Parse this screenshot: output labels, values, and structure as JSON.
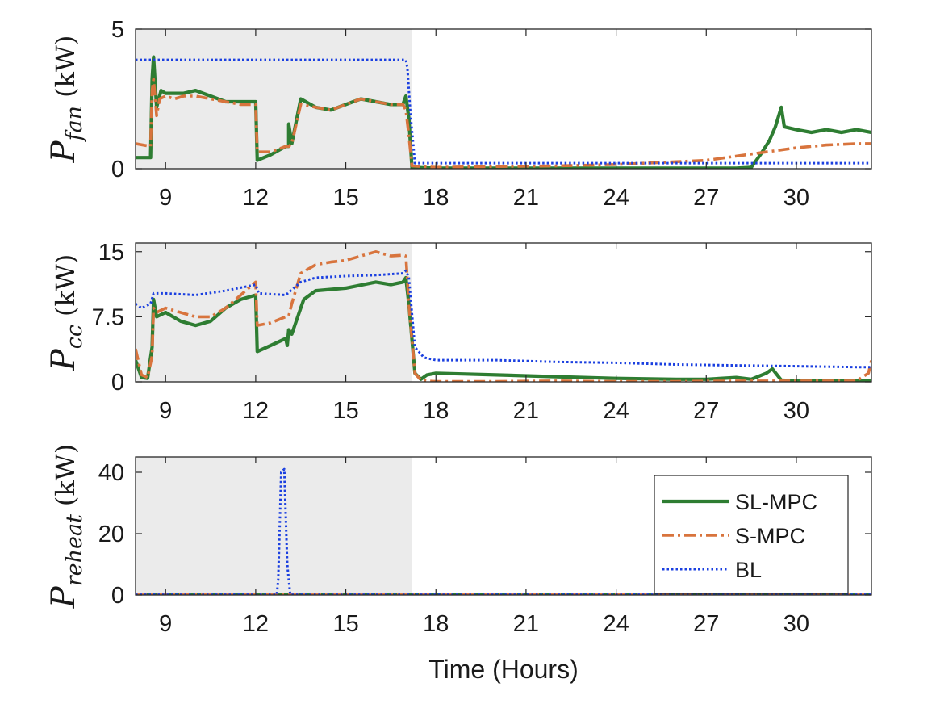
{
  "chart_data": {
    "type": "line",
    "xlabel": "Time (Hours)",
    "xlim": [
      8,
      32.5
    ],
    "x_ticks": [
      9,
      12,
      15,
      18,
      21,
      24,
      27,
      30
    ],
    "shaded_region_x": [
      8,
      17.2
    ],
    "legend": {
      "placement": "right of bottom panel",
      "entries": [
        {
          "name": "SL-MPC",
          "style": "solid",
          "color": "#2e7d32"
        },
        {
          "name": "S-MPC",
          "style": "dash-dot",
          "color": "#d8743d"
        },
        {
          "name": "BL",
          "style": "dotted",
          "color": "#1a3fe0"
        }
      ]
    },
    "colors": {
      "SL-MPC": "#2e7d32",
      "S-MPC": "#d8743d",
      "BL": "#1a3fe0",
      "shade": "#ebebeb"
    },
    "panels": [
      {
        "ylabel_main": "P",
        "ylabel_sub": "fan",
        "ylabel_unit": "(kW)",
        "ylim": [
          0,
          5
        ],
        "y_ticks": [
          {
            "value": 0,
            "label": "0"
          },
          {
            "value": 5,
            "label": "5"
          }
        ],
        "series": [
          {
            "name": "SL-MPC",
            "points": [
              [
                8,
                0.4
              ],
              [
                8.5,
                0.4
              ],
              [
                8.55,
                3.2
              ],
              [
                8.6,
                4.0
              ],
              [
                8.7,
                2.2
              ],
              [
                8.85,
                2.8
              ],
              [
                9,
                2.7
              ],
              [
                9.3,
                2.7
              ],
              [
                9.6,
                2.7
              ],
              [
                10,
                2.8
              ],
              [
                10.5,
                2.6
              ],
              [
                11,
                2.4
              ],
              [
                11.5,
                2.4
              ],
              [
                12,
                2.4
              ],
              [
                12.05,
                0.3
              ],
              [
                12.5,
                0.5
              ],
              [
                13,
                0.8
              ],
              [
                13.1,
                0.8
              ],
              [
                13.1,
                1.6
              ],
              [
                13.2,
                0.9
              ],
              [
                13.5,
                2.5
              ],
              [
                14,
                2.2
              ],
              [
                14.5,
                2.1
              ],
              [
                15,
                2.3
              ],
              [
                15.5,
                2.5
              ],
              [
                16,
                2.4
              ],
              [
                16.5,
                2.3
              ],
              [
                16.9,
                2.3
              ],
              [
                17,
                2.6
              ],
              [
                17.1,
                1.8
              ],
              [
                17.2,
                0.05
              ],
              [
                18,
                0.02
              ],
              [
                20,
                0.02
              ],
              [
                22,
                0.02
              ],
              [
                24,
                0.02
              ],
              [
                26,
                0.02
              ],
              [
                28,
                0.02
              ],
              [
                28.5,
                0.05
              ],
              [
                28.8,
                0.5
              ],
              [
                29.1,
                1.0
              ],
              [
                29.3,
                1.5
              ],
              [
                29.5,
                2.2
              ],
              [
                29.6,
                1.5
              ],
              [
                30,
                1.4
              ],
              [
                30.5,
                1.3
              ],
              [
                31,
                1.4
              ],
              [
                31.5,
                1.3
              ],
              [
                32,
                1.4
              ],
              [
                32.5,
                1.3
              ]
            ]
          },
          {
            "name": "S-MPC",
            "points": [
              [
                8,
                0.9
              ],
              [
                8.5,
                0.8
              ],
              [
                8.55,
                2.8
              ],
              [
                8.6,
                3.2
              ],
              [
                8.7,
                1.9
              ],
              [
                8.8,
                2.5
              ],
              [
                9,
                2.6
              ],
              [
                9.3,
                2.5
              ],
              [
                9.6,
                2.6
              ],
              [
                10,
                2.6
              ],
              [
                10.5,
                2.5
              ],
              [
                11,
                2.4
              ],
              [
                11.5,
                2.3
              ],
              [
                12,
                2.3
              ],
              [
                12.05,
                0.6
              ],
              [
                12.5,
                0.6
              ],
              [
                13,
                0.8
              ],
              [
                13.1,
                0.8
              ],
              [
                13.2,
                0.9
              ],
              [
                13.5,
                2.3
              ],
              [
                14,
                2.2
              ],
              [
                14.5,
                2.1
              ],
              [
                15,
                2.3
              ],
              [
                15.5,
                2.5
              ],
              [
                16,
                2.4
              ],
              [
                16.5,
                2.3
              ],
              [
                16.9,
                2.3
              ],
              [
                17,
                2.1
              ],
              [
                17.1,
                1.2
              ],
              [
                17.2,
                0.1
              ],
              [
                18,
                0.05
              ],
              [
                20,
                0.08
              ],
              [
                22,
                0.1
              ],
              [
                24,
                0.15
              ],
              [
                26,
                0.25
              ],
              [
                27,
                0.3
              ],
              [
                28,
                0.45
              ],
              [
                29,
                0.6
              ],
              [
                30,
                0.75
              ],
              [
                31,
                0.85
              ],
              [
                32,
                0.9
              ],
              [
                32.5,
                0.9
              ]
            ]
          },
          {
            "name": "BL",
            "points": [
              [
                8,
                3.9
              ],
              [
                17,
                3.9
              ],
              [
                17.05,
                3.6
              ],
              [
                17.15,
                2.0
              ],
              [
                17.3,
                0.2
              ],
              [
                20,
                0.2
              ],
              [
                25,
                0.2
              ],
              [
                30,
                0.2
              ],
              [
                32.5,
                0.2
              ]
            ]
          }
        ]
      },
      {
        "ylabel_main": "P",
        "ylabel_sub": "cc",
        "ylabel_unit": "(kW)",
        "ylim": [
          0,
          16
        ],
        "y_ticks": [
          {
            "value": 0,
            "label": "0"
          },
          {
            "value": 7.5,
            "label": "7.5"
          },
          {
            "value": 15,
            "label": "15"
          }
        ],
        "series": [
          {
            "name": "SL-MPC",
            "points": [
              [
                8,
                2.5
              ],
              [
                8.2,
                0.5
              ],
              [
                8.4,
                0.4
              ],
              [
                8.55,
                4.0
              ],
              [
                8.6,
                9.5
              ],
              [
                8.7,
                7.5
              ],
              [
                9,
                8.0
              ],
              [
                9.5,
                7.0
              ],
              [
                10,
                6.5
              ],
              [
                10.5,
                7.0
              ],
              [
                11,
                8.5
              ],
              [
                11.5,
                9.5
              ],
              [
                12,
                10.0
              ],
              [
                12.05,
                3.5
              ],
              [
                12.5,
                4.2
              ],
              [
                13,
                5.0
              ],
              [
                13.05,
                4.2
              ],
              [
                13.1,
                6.0
              ],
              [
                13.2,
                5.5
              ],
              [
                13.5,
                8.5
              ],
              [
                13.6,
                9.5
              ],
              [
                14,
                10.5
              ],
              [
                15,
                10.8
              ],
              [
                16,
                11.5
              ],
              [
                16.5,
                11.2
              ],
              [
                16.9,
                11.5
              ],
              [
                17,
                12.0
              ],
              [
                17.1,
                9.0
              ],
              [
                17.3,
                1.0
              ],
              [
                17.5,
                0.3
              ],
              [
                17.7,
                0.8
              ],
              [
                18,
                1.0
              ],
              [
                19,
                0.9
              ],
              [
                20,
                0.8
              ],
              [
                22,
                0.6
              ],
              [
                24,
                0.4
              ],
              [
                26,
                0.3
              ],
              [
                27,
                0.3
              ],
              [
                28,
                0.5
              ],
              [
                28.5,
                0.3
              ],
              [
                29,
                1.0
              ],
              [
                29.2,
                1.5
              ],
              [
                29.5,
                0.2
              ],
              [
                30,
                0.1
              ],
              [
                32.5,
                0.1
              ]
            ]
          },
          {
            "name": "S-MPC",
            "points": [
              [
                8,
                3.8
              ],
              [
                8.2,
                0.8
              ],
              [
                8.4,
                0.5
              ],
              [
                8.55,
                3.0
              ],
              [
                8.6,
                8.5
              ],
              [
                8.7,
                8.0
              ],
              [
                9,
                8.5
              ],
              [
                9.5,
                8.0
              ],
              [
                10,
                7.5
              ],
              [
                10.5,
                7.5
              ],
              [
                11,
                8.5
              ],
              [
                11.5,
                10.0
              ],
              [
                12,
                11.5
              ],
              [
                12.05,
                6.5
              ],
              [
                12.5,
                6.8
              ],
              [
                13,
                7.5
              ],
              [
                13.1,
                7.6
              ],
              [
                13.2,
                9.0
              ],
              [
                13.5,
                12.5
              ],
              [
                14,
                13.5
              ],
              [
                14.5,
                13.8
              ],
              [
                15,
                14.0
              ],
              [
                15.5,
                14.5
              ],
              [
                16,
                15.0
              ],
              [
                16.5,
                14.5
              ],
              [
                16.9,
                14.6
              ],
              [
                17,
                14.5
              ],
              [
                17.1,
                9.0
              ],
              [
                17.3,
                1.0
              ],
              [
                17.5,
                0.2
              ],
              [
                17.7,
                0.1
              ],
              [
                18,
                0.05
              ],
              [
                20,
                0.05
              ],
              [
                22,
                0.1
              ],
              [
                24,
                0.05
              ],
              [
                26,
                0.05
              ],
              [
                28,
                0.1
              ],
              [
                30,
                0.1
              ],
              [
                32,
                0.1
              ],
              [
                32.4,
                1.0
              ],
              [
                32.5,
                2.5
              ]
            ]
          },
          {
            "name": "BL",
            "points": [
              [
                8,
                9.0
              ],
              [
                8.2,
                8.5
              ],
              [
                8.5,
                9.0
              ],
              [
                8.6,
                10.2
              ],
              [
                9,
                10.2
              ],
              [
                10,
                10.0
              ],
              [
                11,
                10.5
              ],
              [
                12,
                11.2
              ],
              [
                12.1,
                10.2
              ],
              [
                13,
                10.0
              ],
              [
                13.5,
                11.5
              ],
              [
                14,
                12.0
              ],
              [
                15,
                12.2
              ],
              [
                16,
                12.3
              ],
              [
                16.9,
                12.5
              ],
              [
                17,
                12.8
              ],
              [
                17.1,
                12.0
              ],
              [
                17.3,
                4.0
              ],
              [
                17.6,
                2.8
              ],
              [
                18,
                2.5
              ],
              [
                20,
                2.5
              ],
              [
                22,
                2.3
              ],
              [
                24,
                2.2
              ],
              [
                26,
                2.0
              ],
              [
                28,
                1.9
              ],
              [
                30,
                1.8
              ],
              [
                32,
                1.7
              ],
              [
                32.5,
                1.7
              ]
            ]
          }
        ]
      },
      {
        "ylabel_main": "P",
        "ylabel_sub": "reheat",
        "ylabel_unit": "(kW)",
        "ylim": [
          0,
          45
        ],
        "y_ticks": [
          {
            "value": 0,
            "label": "0"
          },
          {
            "value": 20,
            "label": "20"
          },
          {
            "value": 40,
            "label": "40"
          }
        ],
        "series": [
          {
            "name": "SL-MPC",
            "points": [
              [
                8,
                0.1
              ],
              [
                32.5,
                0.1
              ]
            ]
          },
          {
            "name": "S-MPC",
            "points": [
              [
                8,
                0.1
              ],
              [
                32.5,
                0.1
              ]
            ]
          },
          {
            "name": "BL",
            "points": [
              [
                8,
                0.1
              ],
              [
                12.7,
                0.1
              ],
              [
                12.75,
                5
              ],
              [
                12.85,
                40
              ],
              [
                12.95,
                41
              ],
              [
                13.05,
                10
              ],
              [
                13.15,
                0.1
              ],
              [
                32.5,
                0.1
              ]
            ]
          }
        ]
      }
    ]
  }
}
